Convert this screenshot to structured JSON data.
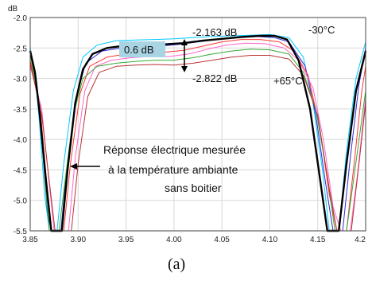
{
  "chart_data": {
    "type": "line",
    "ylabel": "dB",
    "caption": "(a)",
    "xlim": [
      3.85,
      4.2
    ],
    "ylim": [
      -5.5,
      -2.0
    ],
    "x_ticks": [
      "3.85",
      "3.90",
      "3.95",
      "4.00",
      "4.05",
      "4.10",
      "4.15",
      "4.2"
    ],
    "y_ticks": [
      "-2.0",
      "-2.5",
      "-3.0",
      "-3.5",
      "-4.0",
      "-4.5",
      "-5.0",
      "-5.5"
    ],
    "grid": true,
    "series": [
      {
        "color": "#00c8ff",
        "lw": 1,
        "points": [
          [
            3.85,
            -2.5
          ],
          [
            3.855,
            -2.9
          ],
          [
            3.86,
            -3.8
          ],
          [
            3.865,
            -4.9
          ],
          [
            3.87,
            -5.5
          ],
          [
            3.878,
            -5.5
          ],
          [
            3.885,
            -4.4
          ],
          [
            3.895,
            -3.2
          ],
          [
            3.905,
            -2.65
          ],
          [
            3.92,
            -2.45
          ],
          [
            3.94,
            -2.38
          ],
          [
            3.96,
            -2.37
          ],
          [
            3.98,
            -2.36
          ],
          [
            4.0,
            -2.35
          ],
          [
            4.02,
            -2.33
          ],
          [
            4.04,
            -2.31
          ],
          [
            4.06,
            -2.3
          ],
          [
            4.08,
            -2.29
          ],
          [
            4.1,
            -2.28
          ],
          [
            4.12,
            -2.33
          ],
          [
            4.135,
            -2.65
          ],
          [
            4.145,
            -3.4
          ],
          [
            4.155,
            -4.5
          ],
          [
            4.162,
            -5.5
          ],
          [
            4.172,
            -5.5
          ],
          [
            4.18,
            -4.2
          ],
          [
            4.19,
            -3.0
          ],
          [
            4.2,
            -2.4
          ]
        ]
      },
      {
        "color": "#2b2bd8",
        "lw": 1,
        "points": [
          [
            3.85,
            -2.55
          ],
          [
            3.857,
            -3.1
          ],
          [
            3.863,
            -4.2
          ],
          [
            3.868,
            -5.2
          ],
          [
            3.872,
            -5.5
          ],
          [
            3.882,
            -5.5
          ],
          [
            3.888,
            -4.5
          ],
          [
            3.898,
            -3.3
          ],
          [
            3.908,
            -2.75
          ],
          [
            3.925,
            -2.55
          ],
          [
            3.945,
            -2.5
          ],
          [
            3.965,
            -2.49
          ],
          [
            3.985,
            -2.47
          ],
          [
            4.005,
            -2.44
          ],
          [
            4.025,
            -2.4
          ],
          [
            4.045,
            -2.36
          ],
          [
            4.065,
            -2.33
          ],
          [
            4.085,
            -2.31
          ],
          [
            4.105,
            -2.33
          ],
          [
            4.12,
            -2.4
          ],
          [
            4.137,
            -2.8
          ],
          [
            4.148,
            -3.6
          ],
          [
            4.158,
            -4.7
          ],
          [
            4.166,
            -5.5
          ],
          [
            4.176,
            -5.5
          ],
          [
            4.184,
            -4.3
          ],
          [
            4.193,
            -3.1
          ],
          [
            4.2,
            -2.5
          ]
        ]
      },
      {
        "color": "#ff3333",
        "lw": 1,
        "points": [
          [
            3.85,
            -2.7
          ],
          [
            3.86,
            -3.4
          ],
          [
            3.866,
            -4.5
          ],
          [
            3.872,
            -5.5
          ],
          [
            3.885,
            -5.5
          ],
          [
            3.892,
            -4.4
          ],
          [
            3.902,
            -3.25
          ],
          [
            3.912,
            -2.8
          ],
          [
            3.93,
            -2.65
          ],
          [
            3.95,
            -2.6
          ],
          [
            3.97,
            -2.58
          ],
          [
            3.99,
            -2.57
          ],
          [
            4.01,
            -2.54
          ],
          [
            4.03,
            -2.47
          ],
          [
            4.05,
            -2.4
          ],
          [
            4.07,
            -2.36
          ],
          [
            4.09,
            -2.36
          ],
          [
            4.11,
            -2.4
          ],
          [
            4.125,
            -2.55
          ],
          [
            4.14,
            -2.95
          ],
          [
            4.152,
            -3.8
          ],
          [
            4.162,
            -4.9
          ],
          [
            4.17,
            -5.5
          ],
          [
            4.18,
            -5.5
          ],
          [
            4.188,
            -4.4
          ],
          [
            4.196,
            -3.2
          ],
          [
            4.2,
            -2.8
          ]
        ]
      },
      {
        "color": "#ff66cc",
        "lw": 1,
        "points": [
          [
            3.85,
            -2.8
          ],
          [
            3.862,
            -3.5
          ],
          [
            3.869,
            -4.6
          ],
          [
            3.875,
            -5.5
          ],
          [
            3.89,
            -5.5
          ],
          [
            3.897,
            -4.3
          ],
          [
            3.907,
            -3.2
          ],
          [
            3.918,
            -2.8
          ],
          [
            3.935,
            -2.7
          ],
          [
            3.955,
            -2.66
          ],
          [
            3.975,
            -2.64
          ],
          [
            3.995,
            -2.64
          ],
          [
            4.015,
            -2.6
          ],
          [
            4.035,
            -2.52
          ],
          [
            4.055,
            -2.45
          ],
          [
            4.075,
            -2.42
          ],
          [
            4.095,
            -2.43
          ],
          [
            4.115,
            -2.5
          ],
          [
            4.13,
            -2.7
          ],
          [
            4.145,
            -3.15
          ],
          [
            4.156,
            -4.0
          ],
          [
            4.166,
            -5.1
          ],
          [
            4.174,
            -5.5
          ],
          [
            4.184,
            -5.5
          ],
          [
            4.192,
            -4.5
          ],
          [
            4.2,
            -3.3
          ]
        ]
      },
      {
        "color": "#33aa33",
        "lw": 1,
        "points": [
          [
            3.85,
            -2.6
          ],
          [
            3.858,
            -3.3
          ],
          [
            3.864,
            -4.4
          ],
          [
            3.87,
            -5.5
          ],
          [
            3.88,
            -5.5
          ],
          [
            3.887,
            -4.6
          ],
          [
            3.895,
            -3.6
          ],
          [
            3.905,
            -3.0
          ],
          [
            3.92,
            -2.8
          ],
          [
            3.94,
            -2.75
          ],
          [
            3.96,
            -2.72
          ],
          [
            3.98,
            -2.7
          ],
          [
            4.0,
            -2.7
          ],
          [
            4.02,
            -2.66
          ],
          [
            4.04,
            -2.6
          ],
          [
            4.06,
            -2.55
          ],
          [
            4.08,
            -2.52
          ],
          [
            4.1,
            -2.53
          ],
          [
            4.12,
            -2.6
          ],
          [
            4.135,
            -2.9
          ],
          [
            4.148,
            -3.5
          ],
          [
            4.16,
            -4.6
          ],
          [
            4.168,
            -5.5
          ],
          [
            4.18,
            -5.5
          ],
          [
            4.188,
            -4.6
          ],
          [
            4.2,
            -3.2
          ]
        ]
      },
      {
        "color": "#bb3333",
        "lw": 1,
        "points": [
          [
            3.85,
            -2.75
          ],
          [
            3.862,
            -3.6
          ],
          [
            3.87,
            -4.7
          ],
          [
            3.876,
            -5.5
          ],
          [
            3.893,
            -5.5
          ],
          [
            3.9,
            -4.4
          ],
          [
            3.91,
            -3.3
          ],
          [
            3.922,
            -2.9
          ],
          [
            3.94,
            -2.8
          ],
          [
            3.96,
            -2.78
          ],
          [
            3.98,
            -2.77
          ],
          [
            4.0,
            -2.78
          ],
          [
            4.02,
            -2.75
          ],
          [
            4.04,
            -2.7
          ],
          [
            4.06,
            -2.65
          ],
          [
            4.08,
            -2.62
          ],
          [
            4.1,
            -2.62
          ],
          [
            4.12,
            -2.68
          ],
          [
            4.135,
            -2.95
          ],
          [
            4.15,
            -3.6
          ],
          [
            4.162,
            -4.8
          ],
          [
            4.17,
            -5.5
          ],
          [
            4.185,
            -5.5
          ],
          [
            4.193,
            -4.4
          ],
          [
            4.2,
            -3.4
          ]
        ]
      },
      {
        "color": "#000000",
        "lw": 2.4,
        "points": [
          [
            3.85,
            -2.55
          ],
          [
            3.855,
            -2.9
          ],
          [
            3.86,
            -3.6
          ],
          [
            3.866,
            -4.6
          ],
          [
            3.872,
            -5.5
          ],
          [
            3.883,
            -5.5
          ],
          [
            3.889,
            -4.5
          ],
          [
            3.897,
            -3.4
          ],
          [
            3.905,
            -2.85
          ],
          [
            3.915,
            -2.6
          ],
          [
            3.93,
            -2.5
          ],
          [
            3.95,
            -2.46
          ],
          [
            3.97,
            -2.45
          ],
          [
            3.99,
            -2.44
          ],
          [
            4.01,
            -2.42
          ],
          [
            4.03,
            -2.38
          ],
          [
            4.05,
            -2.35
          ],
          [
            4.07,
            -2.32
          ],
          [
            4.09,
            -2.3
          ],
          [
            4.105,
            -2.3
          ],
          [
            4.118,
            -2.36
          ],
          [
            4.13,
            -2.7
          ],
          [
            4.142,
            -3.5
          ],
          [
            4.152,
            -4.6
          ],
          [
            4.16,
            -5.5
          ],
          [
            4.172,
            -5.5
          ],
          [
            4.18,
            -4.4
          ],
          [
            4.19,
            -3.2
          ],
          [
            4.2,
            -2.55
          ]
        ]
      }
    ],
    "annotations": {
      "delta_box": "0.6 dB",
      "top_value": "-2.163 dB",
      "bottom_value": "-2.822 dB",
      "cold_temp": "-30°C",
      "hot_temp": "+65°C",
      "note_line1": "Réponse électrique mesurée",
      "note_line2": "à la température ambiante",
      "note_line3": "sans boitier"
    }
  },
  "colors": {
    "box_fill": "#a9d4e3",
    "axis": "#444444",
    "grid": "#d8d8d8"
  }
}
